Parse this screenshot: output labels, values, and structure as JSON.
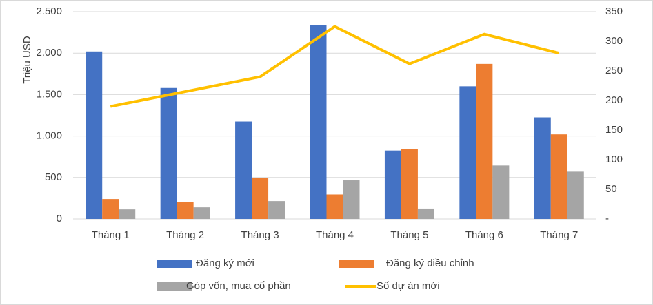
{
  "chart_data": {
    "type": "bar_line",
    "y_label": "Triệu USD",
    "categories": [
      "Tháng 1",
      "Tháng 2",
      "Tháng 3",
      "Tháng 4",
      "Tháng 5",
      "Tháng 6",
      "Tháng 7"
    ],
    "series": [
      {
        "name": "Đăng ký mới",
        "color": "#4472c4",
        "type": "bar",
        "values": [
          2020,
          1580,
          1175,
          2340,
          825,
          1600,
          1225
        ]
      },
      {
        "name": "Đăng ký điều chỉnh",
        "color": "#ed7d31",
        "type": "bar",
        "values": [
          240,
          205,
          495,
          295,
          845,
          1870,
          1020
        ]
      },
      {
        "name": "Góp vốn, mua cổ phần",
        "color": "#a5a5a5",
        "type": "bar",
        "values": [
          115,
          140,
          215,
          465,
          125,
          645,
          570
        ]
      },
      {
        "name": "Số dự án mới",
        "color": "#ffc000",
        "type": "line",
        "axis": "y2",
        "values": [
          190,
          215,
          240,
          325,
          262,
          312,
          280
        ]
      }
    ],
    "ylim": [
      0,
      2500
    ],
    "yticks": [
      0,
      500,
      {
        "value": 1000,
        "label": "1.000"
      },
      {
        "value": 1500,
        "label": "1.500"
      },
      {
        "value": 2000,
        "label": "2.000"
      },
      {
        "value": 2500,
        "label": "2.500"
      }
    ],
    "y2lim": [
      0,
      350
    ],
    "y2ticks": [
      {
        "value": 0,
        "label": "-"
      },
      50,
      100,
      150,
      200,
      250,
      300,
      350
    ],
    "grid": true,
    "legend": "bottom"
  }
}
